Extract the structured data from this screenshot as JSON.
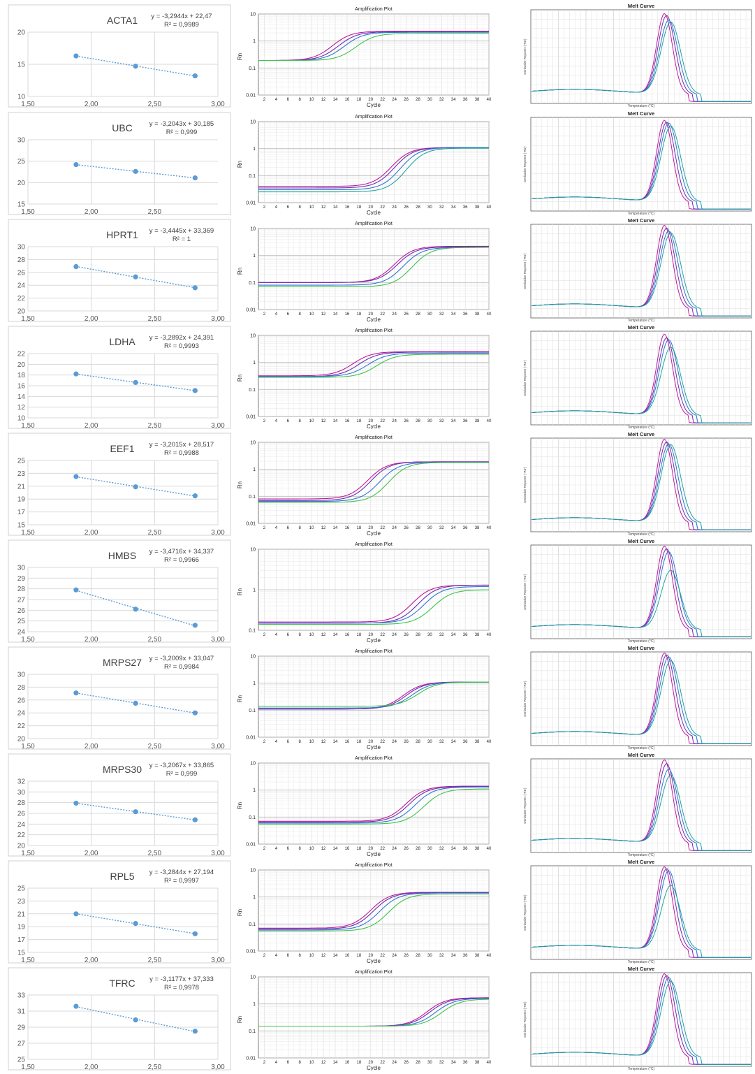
{
  "amp": {
    "title": "Amplification Plot",
    "xlabel": "Cycle",
    "ylabel": "Rn",
    "xticks": [
      "2",
      "4",
      "6",
      "8",
      "10",
      "12",
      "14",
      "16",
      "18",
      "20",
      "22",
      "24",
      "26",
      "28",
      "30",
      "32",
      "34",
      "36",
      "38",
      "40"
    ]
  },
  "melt": {
    "title": "Melt Curve",
    "xlabel": "Temperature (°C)",
    "ylabel": "Derivative Reporter (-Rn')"
  },
  "colors": {
    "magenta": "#c0189b",
    "purple": "#6a2fb0",
    "blue": "#2f74d6",
    "teal": "#1fa59a",
    "green": "#3ec34a",
    "std_point": "#5b9bd5"
  },
  "chart_data": [
    {
      "gene": "ACTA1",
      "type": "scatter",
      "equation": "y = -3,2944x + 22,47",
      "r2": "R² = 0,9989",
      "x": [
        1.88,
        2.35,
        2.82
      ],
      "y": [
        16.3,
        14.7,
        13.2
      ],
      "ylim": [
        10,
        20
      ],
      "yticks": [
        "10",
        "15",
        "20"
      ],
      "xticks": [
        "1,50",
        "2,00",
        "2,50",
        "3,00"
      ],
      "xlim": [
        1.5,
        3.0
      ],
      "amp_ylim": [
        0.01,
        10
      ],
      "amp_yticks": [
        "0.01",
        "0.1",
        "1",
        "10"
      ],
      "amp_curves": [
        {
          "color": "magenta",
          "base": 0.19,
          "plateau": 2.3,
          "mid": 13.5
        },
        {
          "color": "purple",
          "base": 0.19,
          "plateau": 2.2,
          "mid": 14.5
        },
        {
          "color": "blue",
          "base": 0.19,
          "plateau": 2.1,
          "mid": 15.5
        },
        {
          "color": "green",
          "base": 0.19,
          "plateau": 1.9,
          "mid": 17.5
        }
      ],
      "melt_peaks": [
        0.85,
        0.83,
        0.78,
        0.76
      ]
    },
    {
      "gene": "UBC",
      "type": "scatter",
      "equation": "y = -3,2043x + 30,185",
      "r2": "R² = 0,999",
      "x": [
        1.88,
        2.35,
        2.82
      ],
      "y": [
        24.2,
        22.6,
        21.1
      ],
      "ylim": [
        15,
        30
      ],
      "yticks": [
        "15",
        "20",
        "25",
        "30"
      ],
      "xticks": [
        "1,50",
        "2,00",
        "2,50"
      ],
      "xlim": [
        1.5,
        3.0
      ],
      "amp_ylim": [
        0.01,
        10
      ],
      "amp_yticks": [
        "0.01",
        "0.1",
        "1",
        "10"
      ],
      "amp_curves": [
        {
          "color": "magenta",
          "base": 0.04,
          "plateau": 1.1,
          "mid": 23.5
        },
        {
          "color": "purple",
          "base": 0.035,
          "plateau": 1.1,
          "mid": 24
        },
        {
          "color": "blue",
          "base": 0.03,
          "plateau": 1.1,
          "mid": 25
        },
        {
          "color": "teal",
          "base": 0.025,
          "plateau": 1.05,
          "mid": 26
        }
      ],
      "melt_peaks": [
        0.86,
        0.84,
        0.83,
        0.8
      ]
    },
    {
      "gene": "HPRT1",
      "type": "scatter",
      "equation": "y = -3,4445x + 33,369",
      "r2": "R² = 1",
      "x": [
        1.88,
        2.35,
        2.82
      ],
      "y": [
        26.9,
        25.3,
        23.6
      ],
      "ylim": [
        20,
        30
      ],
      "yticks": [
        "20",
        "22",
        "24",
        "26",
        "28",
        "30"
      ],
      "xticks": [
        "1,50",
        "2,00",
        "2,50",
        "3,00"
      ],
      "xlim": [
        1.5,
        3.0
      ],
      "amp_ylim": [
        0.01,
        10
      ],
      "amp_yticks": [
        "0.01",
        "0.1",
        "1",
        "10"
      ],
      "amp_curves": [
        {
          "color": "magenta",
          "base": 0.1,
          "plateau": 2.2,
          "mid": 24
        },
        {
          "color": "purple",
          "base": 0.1,
          "plateau": 2.1,
          "mid": 24.5
        },
        {
          "color": "blue",
          "base": 0.08,
          "plateau": 2.0,
          "mid": 25.5
        },
        {
          "color": "green",
          "base": 0.07,
          "plateau": 2.0,
          "mid": 27
        }
      ],
      "melt_peaks": [
        0.88,
        0.85,
        0.82,
        0.8
      ]
    },
    {
      "gene": "LDHA",
      "type": "scatter",
      "equation": "y = -3,2892x + 24,391",
      "r2": "R² = 0,9993",
      "x": [
        1.88,
        2.35,
        2.82
      ],
      "y": [
        18.2,
        16.6,
        15.1
      ],
      "ylim": [
        10,
        22
      ],
      "yticks": [
        "10",
        "12",
        "14",
        "16",
        "18",
        "20",
        "22"
      ],
      "xticks": [
        "1,50",
        "2,00",
        "2,50",
        "3,00"
      ],
      "xlim": [
        1.5,
        3.0
      ],
      "amp_ylim": [
        0.01,
        10
      ],
      "amp_yticks": [
        "0.01",
        "0.1",
        "1",
        "10"
      ],
      "amp_curves": [
        {
          "color": "magenta",
          "base": 0.32,
          "plateau": 2.5,
          "mid": 17
        },
        {
          "color": "purple",
          "base": 0.3,
          "plateau": 2.4,
          "mid": 18
        },
        {
          "color": "blue",
          "base": 0.3,
          "plateau": 2.2,
          "mid": 19.5
        },
        {
          "color": "green",
          "base": 0.28,
          "plateau": 2.0,
          "mid": 21
        }
      ],
      "melt_peaks": [
        0.86,
        0.82,
        0.8,
        0.72
      ]
    },
    {
      "gene": "EEF1",
      "type": "scatter",
      "equation": "y = -3,2015x + 28,517",
      "r2": "R² = 0,9988",
      "x": [
        1.88,
        2.35,
        2.82
      ],
      "y": [
        22.5,
        20.9,
        19.5
      ],
      "ylim": [
        15,
        25
      ],
      "yticks": [
        "15",
        "17",
        "19",
        "21",
        "23",
        "25"
      ],
      "xticks": [
        "1,50",
        "2,00",
        "2,50",
        "3,00"
      ],
      "xlim": [
        1.5,
        3.0
      ],
      "amp_ylim": [
        0.01,
        10
      ],
      "amp_yticks": [
        "0.01",
        "0.1",
        "1",
        "10"
      ],
      "amp_curves": [
        {
          "color": "magenta",
          "base": 0.08,
          "plateau": 1.9,
          "mid": 19.5
        },
        {
          "color": "purple",
          "base": 0.07,
          "plateau": 1.9,
          "mid": 20
        },
        {
          "color": "blue",
          "base": 0.065,
          "plateau": 1.8,
          "mid": 21.5
        },
        {
          "color": "green",
          "base": 0.06,
          "plateau": 1.8,
          "mid": 23
        }
      ],
      "melt_peaks": [
        0.88,
        0.85,
        0.83,
        0.82
      ]
    },
    {
      "gene": "HMBS",
      "type": "scatter",
      "equation": "y = -3,4716x + 34,337",
      "r2": "R² = 0,9966",
      "x": [
        1.88,
        2.35,
        2.82
      ],
      "y": [
        27.9,
        26.1,
        24.6
      ],
      "ylim": [
        24,
        30
      ],
      "yticks": [
        "24",
        "25",
        "26",
        "27",
        "28",
        "29",
        "30"
      ],
      "xticks": [
        "1,50",
        "2,00",
        "2,50",
        "3,00"
      ],
      "xlim": [
        1.5,
        3.0
      ],
      "amp_ylim": [
        0.1,
        10
      ],
      "amp_yticks": [
        "0.1",
        "1",
        "10"
      ],
      "amp_curves": [
        {
          "color": "magenta",
          "base": 0.16,
          "plateau": 1.3,
          "mid": 27
        },
        {
          "color": "purple",
          "base": 0.15,
          "plateau": 1.3,
          "mid": 28
        },
        {
          "color": "blue",
          "base": 0.15,
          "plateau": 1.2,
          "mid": 29
        },
        {
          "color": "green",
          "base": 0.14,
          "plateau": 1.0,
          "mid": 30.5
        }
      ],
      "melt_peaks": [
        0.88,
        0.85,
        0.82,
        0.62
      ]
    },
    {
      "gene": "MRPS27",
      "type": "scatter",
      "equation": "y = -3,2009x + 33,047",
      "r2": "R² = 0,9984",
      "x": [
        1.88,
        2.35,
        2.82
      ],
      "y": [
        27.1,
        25.5,
        24.0
      ],
      "ylim": [
        20,
        30
      ],
      "yticks": [
        "20",
        "22",
        "24",
        "26",
        "28",
        "30"
      ],
      "xticks": [
        "1,50",
        "2,00",
        "2,50",
        "3,00"
      ],
      "xlim": [
        1.5,
        3.0
      ],
      "amp_ylim": [
        0.01,
        10
      ],
      "amp_yticks": [
        "0.01",
        "0.1",
        "1",
        "10"
      ],
      "amp_curves": [
        {
          "color": "magenta",
          "base": 0.11,
          "plateau": 1.1,
          "mid": 25.5
        },
        {
          "color": "purple",
          "base": 0.11,
          "plateau": 1.1,
          "mid": 26
        },
        {
          "color": "blue",
          "base": 0.12,
          "plateau": 1.1,
          "mid": 27
        },
        {
          "color": "green",
          "base": 0.14,
          "plateau": 1.1,
          "mid": 28
        }
      ],
      "melt_peaks": [
        0.88,
        0.86,
        0.84,
        0.8
      ]
    },
    {
      "gene": "MRPS30",
      "type": "scatter",
      "equation": "y = -3,2067x + 33,865",
      "r2": "R² = 0,999",
      "x": [
        1.88,
        2.35,
        2.82
      ],
      "y": [
        27.9,
        26.3,
        24.8
      ],
      "ylim": [
        20,
        32
      ],
      "yticks": [
        "20",
        "22",
        "24",
        "26",
        "28",
        "30",
        "32"
      ],
      "xticks": [
        "1,50",
        "2,00",
        "2,50",
        "3,00"
      ],
      "xlim": [
        1.5,
        3.0
      ],
      "amp_ylim": [
        0.01,
        10
      ],
      "amp_yticks": [
        "0.01",
        "0.1",
        "1",
        "10"
      ],
      "amp_curves": [
        {
          "color": "magenta",
          "base": 0.07,
          "plateau": 1.4,
          "mid": 26
        },
        {
          "color": "purple",
          "base": 0.065,
          "plateau": 1.35,
          "mid": 26.5
        },
        {
          "color": "blue",
          "base": 0.06,
          "plateau": 1.3,
          "mid": 27.5
        },
        {
          "color": "green",
          "base": 0.055,
          "plateau": 1.1,
          "mid": 29
        }
      ],
      "melt_peaks": [
        0.88,
        0.84,
        0.78,
        0.72
      ]
    },
    {
      "gene": "RPL5",
      "type": "scatter",
      "equation": "y = -3,2844x + 27,194",
      "r2": "R² = 0,9997",
      "x": [
        1.88,
        2.35,
        2.82
      ],
      "y": [
        21.0,
        19.5,
        17.9
      ],
      "ylim": [
        15,
        25
      ],
      "yticks": [
        "15",
        "17",
        "19",
        "21",
        "23",
        "25"
      ],
      "xticks": [
        "1,50",
        "2,00",
        "2,50",
        "3,00"
      ],
      "xlim": [
        1.5,
        3.0
      ],
      "amp_ylim": [
        0.01,
        10
      ],
      "amp_yticks": [
        "0.01",
        "0.1",
        "1",
        "10"
      ],
      "amp_curves": [
        {
          "color": "magenta",
          "base": 0.07,
          "plateau": 1.5,
          "mid": 20
        },
        {
          "color": "purple",
          "base": 0.065,
          "plateau": 1.45,
          "mid": 20.5
        },
        {
          "color": "blue",
          "base": 0.06,
          "plateau": 1.4,
          "mid": 21.5
        },
        {
          "color": "green",
          "base": 0.055,
          "plateau": 1.3,
          "mid": 23
        }
      ],
      "melt_peaks": [
        0.88,
        0.86,
        0.84,
        0.68
      ]
    },
    {
      "gene": "TFRC",
      "type": "scatter",
      "equation": "y = -3,1177x + 37,333",
      "r2": "R² = 0,9978",
      "x": [
        1.88,
        2.35,
        2.82
      ],
      "y": [
        31.6,
        29.9,
        28.5
      ],
      "ylim": [
        25,
        33
      ],
      "yticks": [
        "25",
        "27",
        "29",
        "31",
        "33"
      ],
      "xticks": [
        "1,50",
        "2,00",
        "2,50",
        "3,00"
      ],
      "xlim": [
        1.5,
        3.0
      ],
      "amp_ylim": [
        0.01,
        10
      ],
      "amp_yticks": [
        "0.01",
        "0.1",
        "1",
        "10"
      ],
      "amp_curves": [
        {
          "color": "magenta",
          "base": 0.15,
          "plateau": 1.7,
          "mid": 29.5
        },
        {
          "color": "purple",
          "base": 0.15,
          "plateau": 1.65,
          "mid": 30
        },
        {
          "color": "blue",
          "base": 0.15,
          "plateau": 1.6,
          "mid": 31
        },
        {
          "color": "green",
          "base": 0.15,
          "plateau": 1.5,
          "mid": 32
        }
      ],
      "melt_peaks": [
        0.88,
        0.86,
        0.84,
        0.8
      ]
    }
  ]
}
